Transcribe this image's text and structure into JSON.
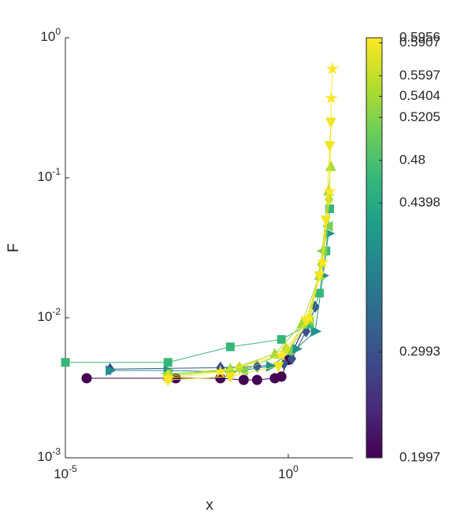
{
  "chart_data": {
    "type": "scatter-line",
    "log_x": true,
    "log_y": true,
    "xlabel": "x",
    "ylabel": "F",
    "xlim": [
      1e-05,
      28.2
    ],
    "xticks": [
      {
        "value": 1e-05,
        "label": "10^-5"
      },
      {
        "value": 1,
        "label": "10^0"
      }
    ],
    "ylim": [
      0.001,
      1
    ],
    "yticks": [
      {
        "value": 0.001,
        "label": "10^-3"
      },
      {
        "value": 0.01,
        "label": "10^-2"
      },
      {
        "value": 0.1,
        "label": "10^-1"
      },
      {
        "value": 1,
        "label": "10^0"
      }
    ],
    "colorbar": {
      "lim": [
        0.1997,
        0.5956
      ],
      "ticks": [
        0.1997,
        0.2993,
        0.4398,
        0.48,
        0.5205,
        0.5404,
        0.5597,
        0.5907,
        0.5956
      ],
      "colormap": [
        "#440154",
        "#482878",
        "#3e4989",
        "#31688e",
        "#26828e",
        "#1f9e89",
        "#35b779",
        "#6ece58",
        "#b5de2b",
        "#fde725"
      ]
    },
    "series": [
      {
        "value": 0.1997,
        "marker": "circle",
        "color": "#440154",
        "x": [
          3e-05,
          0.003,
          0.03,
          0.1,
          0.2,
          0.5,
          0.7,
          1.0,
          2.5
        ],
        "values": [
          0.0037,
          0.0037,
          0.0037,
          0.0036,
          0.0036,
          0.0037,
          0.0038,
          0.005,
          0.009
        ]
      },
      {
        "value": 0.2993,
        "marker": "diamond",
        "color": "#3b528b",
        "x": [
          0.0001,
          0.03,
          0.2,
          0.8,
          1.2,
          2.5,
          4
        ],
        "values": [
          0.0043,
          0.0044,
          0.0045,
          0.0047,
          0.0051,
          0.008,
          0.012
        ]
      },
      {
        "value": 0.4398,
        "marker": "triangle-right",
        "color": "#21918c",
        "x": [
          0.0001,
          0.002,
          0.05,
          0.4,
          1.5,
          4,
          6,
          8
        ],
        "values": [
          0.0042,
          0.0042,
          0.0041,
          0.0045,
          0.006,
          0.008,
          0.02,
          0.04
        ]
      },
      {
        "value": 0.48,
        "marker": "square",
        "color": "#35b779",
        "x": [
          1e-05,
          0.002,
          0.05,
          0.7,
          3,
          5,
          7,
          8.5
        ],
        "values": [
          0.0048,
          0.0048,
          0.0062,
          0.007,
          0.009,
          0.015,
          0.03,
          0.06
        ]
      },
      {
        "value": 0.5205,
        "marker": "triangle-left",
        "color": "#7ad151",
        "x": [
          0.002,
          0.1,
          1,
          3,
          6,
          8
        ],
        "values": [
          0.004,
          0.0042,
          0.0058,
          0.0095,
          0.03,
          0.045
        ]
      },
      {
        "value": 0.5404,
        "marker": "triangle-up",
        "color": "#a0da39",
        "x": [
          0.002,
          0.05,
          0.5,
          2,
          5,
          8,
          9
        ],
        "values": [
          0.0038,
          0.0043,
          0.0055,
          0.009,
          0.02,
          0.08,
          0.12
        ]
      },
      {
        "value": 0.5597,
        "marker": "diamond",
        "color": "#c2df23",
        "x": [
          0.002,
          0.08,
          0.9,
          2.8,
          5.5,
          8.2
        ],
        "values": [
          0.0039,
          0.0044,
          0.006,
          0.0098,
          0.024,
          0.07
        ]
      },
      {
        "value": 0.5907,
        "marker": "triangle-down",
        "color": "#f0e51f",
        "x": [
          0.002,
          0.05,
          0.6,
          2.5,
          5,
          7,
          8.5,
          9
        ],
        "values": [
          0.0036,
          0.0038,
          0.0045,
          0.0095,
          0.02,
          0.05,
          0.17,
          0.25
        ]
      },
      {
        "value": 0.5956,
        "marker": "star",
        "color": "#fde725",
        "x": [
          0.002,
          0.03,
          0.7,
          3,
          6,
          8.5,
          9.2,
          9.8
        ],
        "values": [
          0.0037,
          0.0041,
          0.0054,
          0.01,
          0.025,
          0.08,
          0.37,
          0.6
        ]
      }
    ]
  }
}
